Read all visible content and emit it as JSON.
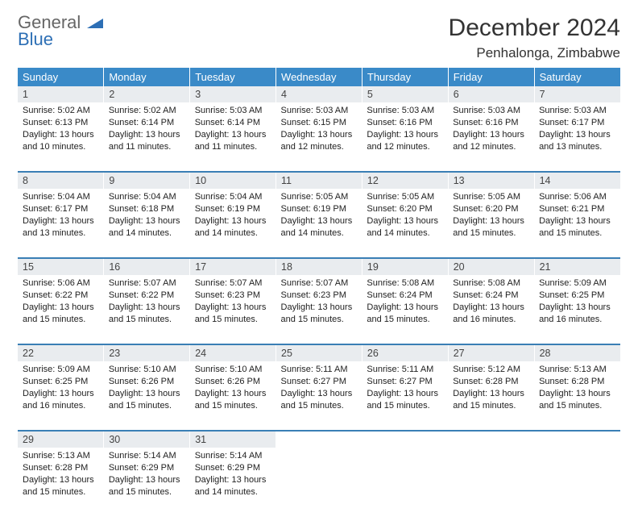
{
  "logo": {
    "line1": "General",
    "line2": "Blue"
  },
  "title": "December 2024",
  "location": "Penhalonga, Zimbabwe",
  "colors": {
    "header_bg": "#3a8ac8",
    "header_text": "#ffffff",
    "daynum_bg": "#e9ecef",
    "divider": "#3a7fb5",
    "logo_blue": "#2d6fb5",
    "logo_gray": "#666666"
  },
  "weekdays": [
    "Sunday",
    "Monday",
    "Tuesday",
    "Wednesday",
    "Thursday",
    "Friday",
    "Saturday"
  ],
  "days": [
    {
      "n": "1",
      "sr": "Sunrise: 5:02 AM",
      "ss": "Sunset: 6:13 PM",
      "d1": "Daylight: 13 hours",
      "d2": "and 10 minutes."
    },
    {
      "n": "2",
      "sr": "Sunrise: 5:02 AM",
      "ss": "Sunset: 6:14 PM",
      "d1": "Daylight: 13 hours",
      "d2": "and 11 minutes."
    },
    {
      "n": "3",
      "sr": "Sunrise: 5:03 AM",
      "ss": "Sunset: 6:14 PM",
      "d1": "Daylight: 13 hours",
      "d2": "and 11 minutes."
    },
    {
      "n": "4",
      "sr": "Sunrise: 5:03 AM",
      "ss": "Sunset: 6:15 PM",
      "d1": "Daylight: 13 hours",
      "d2": "and 12 minutes."
    },
    {
      "n": "5",
      "sr": "Sunrise: 5:03 AM",
      "ss": "Sunset: 6:16 PM",
      "d1": "Daylight: 13 hours",
      "d2": "and 12 minutes."
    },
    {
      "n": "6",
      "sr": "Sunrise: 5:03 AM",
      "ss": "Sunset: 6:16 PM",
      "d1": "Daylight: 13 hours",
      "d2": "and 12 minutes."
    },
    {
      "n": "7",
      "sr": "Sunrise: 5:03 AM",
      "ss": "Sunset: 6:17 PM",
      "d1": "Daylight: 13 hours",
      "d2": "and 13 minutes."
    },
    {
      "n": "8",
      "sr": "Sunrise: 5:04 AM",
      "ss": "Sunset: 6:17 PM",
      "d1": "Daylight: 13 hours",
      "d2": "and 13 minutes."
    },
    {
      "n": "9",
      "sr": "Sunrise: 5:04 AM",
      "ss": "Sunset: 6:18 PM",
      "d1": "Daylight: 13 hours",
      "d2": "and 14 minutes."
    },
    {
      "n": "10",
      "sr": "Sunrise: 5:04 AM",
      "ss": "Sunset: 6:19 PM",
      "d1": "Daylight: 13 hours",
      "d2": "and 14 minutes."
    },
    {
      "n": "11",
      "sr": "Sunrise: 5:05 AM",
      "ss": "Sunset: 6:19 PM",
      "d1": "Daylight: 13 hours",
      "d2": "and 14 minutes."
    },
    {
      "n": "12",
      "sr": "Sunrise: 5:05 AM",
      "ss": "Sunset: 6:20 PM",
      "d1": "Daylight: 13 hours",
      "d2": "and 14 minutes."
    },
    {
      "n": "13",
      "sr": "Sunrise: 5:05 AM",
      "ss": "Sunset: 6:20 PM",
      "d1": "Daylight: 13 hours",
      "d2": "and 15 minutes."
    },
    {
      "n": "14",
      "sr": "Sunrise: 5:06 AM",
      "ss": "Sunset: 6:21 PM",
      "d1": "Daylight: 13 hours",
      "d2": "and 15 minutes."
    },
    {
      "n": "15",
      "sr": "Sunrise: 5:06 AM",
      "ss": "Sunset: 6:22 PM",
      "d1": "Daylight: 13 hours",
      "d2": "and 15 minutes."
    },
    {
      "n": "16",
      "sr": "Sunrise: 5:07 AM",
      "ss": "Sunset: 6:22 PM",
      "d1": "Daylight: 13 hours",
      "d2": "and 15 minutes."
    },
    {
      "n": "17",
      "sr": "Sunrise: 5:07 AM",
      "ss": "Sunset: 6:23 PM",
      "d1": "Daylight: 13 hours",
      "d2": "and 15 minutes."
    },
    {
      "n": "18",
      "sr": "Sunrise: 5:07 AM",
      "ss": "Sunset: 6:23 PM",
      "d1": "Daylight: 13 hours",
      "d2": "and 15 minutes."
    },
    {
      "n": "19",
      "sr": "Sunrise: 5:08 AM",
      "ss": "Sunset: 6:24 PM",
      "d1": "Daylight: 13 hours",
      "d2": "and 15 minutes."
    },
    {
      "n": "20",
      "sr": "Sunrise: 5:08 AM",
      "ss": "Sunset: 6:24 PM",
      "d1": "Daylight: 13 hours",
      "d2": "and 16 minutes."
    },
    {
      "n": "21",
      "sr": "Sunrise: 5:09 AM",
      "ss": "Sunset: 6:25 PM",
      "d1": "Daylight: 13 hours",
      "d2": "and 16 minutes."
    },
    {
      "n": "22",
      "sr": "Sunrise: 5:09 AM",
      "ss": "Sunset: 6:25 PM",
      "d1": "Daylight: 13 hours",
      "d2": "and 16 minutes."
    },
    {
      "n": "23",
      "sr": "Sunrise: 5:10 AM",
      "ss": "Sunset: 6:26 PM",
      "d1": "Daylight: 13 hours",
      "d2": "and 15 minutes."
    },
    {
      "n": "24",
      "sr": "Sunrise: 5:10 AM",
      "ss": "Sunset: 6:26 PM",
      "d1": "Daylight: 13 hours",
      "d2": "and 15 minutes."
    },
    {
      "n": "25",
      "sr": "Sunrise: 5:11 AM",
      "ss": "Sunset: 6:27 PM",
      "d1": "Daylight: 13 hours",
      "d2": "and 15 minutes."
    },
    {
      "n": "26",
      "sr": "Sunrise: 5:11 AM",
      "ss": "Sunset: 6:27 PM",
      "d1": "Daylight: 13 hours",
      "d2": "and 15 minutes."
    },
    {
      "n": "27",
      "sr": "Sunrise: 5:12 AM",
      "ss": "Sunset: 6:28 PM",
      "d1": "Daylight: 13 hours",
      "d2": "and 15 minutes."
    },
    {
      "n": "28",
      "sr": "Sunrise: 5:13 AM",
      "ss": "Sunset: 6:28 PM",
      "d1": "Daylight: 13 hours",
      "d2": "and 15 minutes."
    },
    {
      "n": "29",
      "sr": "Sunrise: 5:13 AM",
      "ss": "Sunset: 6:28 PM",
      "d1": "Daylight: 13 hours",
      "d2": "and 15 minutes."
    },
    {
      "n": "30",
      "sr": "Sunrise: 5:14 AM",
      "ss": "Sunset: 6:29 PM",
      "d1": "Daylight: 13 hours",
      "d2": "and 15 minutes."
    },
    {
      "n": "31",
      "sr": "Sunrise: 5:14 AM",
      "ss": "Sunset: 6:29 PM",
      "d1": "Daylight: 13 hours",
      "d2": "and 14 minutes."
    }
  ]
}
